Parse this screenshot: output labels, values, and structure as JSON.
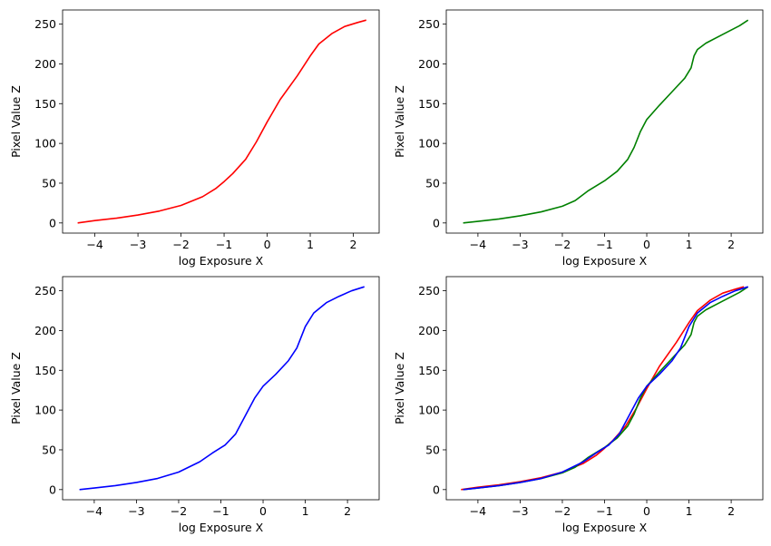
{
  "chart_data": [
    {
      "type": "line",
      "xlabel": "log Exposure X",
      "ylabel": "Pixel Value Z",
      "xticks": [
        -4,
        -3,
        -2,
        -1,
        0,
        1,
        2
      ],
      "yticks": [
        0,
        50,
        100,
        150,
        200,
        250
      ],
      "xlim": [
        -4.75,
        2.6
      ],
      "ylim": [
        -12.75,
        267.75
      ],
      "grid": false,
      "series": [
        {
          "color": "#ff0000",
          "points": [
            [
              -4.4,
              0
            ],
            [
              -4.0,
              3
            ],
            [
              -3.5,
              6
            ],
            [
              -3.0,
              10
            ],
            [
              -2.5,
              15
            ],
            [
              -2.0,
              22
            ],
            [
              -1.5,
              33
            ],
            [
              -1.2,
              43
            ],
            [
              -1.0,
              52
            ],
            [
              -0.8,
              62
            ],
            [
              -0.5,
              80
            ],
            [
              -0.25,
              102
            ],
            [
              0.0,
              127
            ],
            [
              0.3,
              155
            ],
            [
              0.7,
              185
            ],
            [
              1.0,
              210
            ],
            [
              1.2,
              225
            ],
            [
              1.5,
              238
            ],
            [
              1.8,
              247
            ],
            [
              2.1,
              252
            ],
            [
              2.3,
              255
            ]
          ]
        }
      ]
    },
    {
      "type": "line",
      "xlabel": "log Exposure X",
      "ylabel": "Pixel Value Z",
      "xticks": [
        -4,
        -3,
        -2,
        -1,
        0,
        1,
        2
      ],
      "yticks": [
        0,
        50,
        100,
        150,
        200,
        250
      ],
      "xlim": [
        -4.75,
        2.75
      ],
      "ylim": [
        -12.75,
        267.75
      ],
      "grid": false,
      "series": [
        {
          "color": "#008000",
          "points": [
            [
              -4.35,
              0
            ],
            [
              -4.0,
              2
            ],
            [
              -3.5,
              5
            ],
            [
              -3.0,
              9
            ],
            [
              -2.5,
              14
            ],
            [
              -2.0,
              21
            ],
            [
              -1.7,
              28
            ],
            [
              -1.4,
              40
            ],
            [
              -1.0,
              53
            ],
            [
              -0.7,
              65
            ],
            [
              -0.45,
              80
            ],
            [
              -0.3,
              95
            ],
            [
              -0.15,
              115
            ],
            [
              0.0,
              130
            ],
            [
              0.3,
              148
            ],
            [
              0.6,
              165
            ],
            [
              0.9,
              182
            ],
            [
              1.05,
              195
            ],
            [
              1.12,
              210
            ],
            [
              1.2,
              218
            ],
            [
              1.4,
              226
            ],
            [
              1.8,
              237
            ],
            [
              2.2,
              248
            ],
            [
              2.4,
              255
            ]
          ]
        }
      ]
    },
    {
      "type": "line",
      "xlabel": "log Exposure X",
      "ylabel": "Pixel Value Z",
      "xticks": [
        -4,
        -3,
        -2,
        -1,
        0,
        1,
        2
      ],
      "yticks": [
        0,
        50,
        100,
        150,
        200,
        250
      ],
      "xlim": [
        -4.75,
        2.75
      ],
      "ylim": [
        -12.75,
        267.75
      ],
      "grid": false,
      "series": [
        {
          "color": "#0000ff",
          "points": [
            [
              -4.35,
              0
            ],
            [
              -4.0,
              2
            ],
            [
              -3.5,
              5
            ],
            [
              -3.0,
              9
            ],
            [
              -2.5,
              14
            ],
            [
              -2.0,
              22
            ],
            [
              -1.5,
              35
            ],
            [
              -1.2,
              46
            ],
            [
              -0.9,
              56
            ],
            [
              -0.65,
              70
            ],
            [
              -0.45,
              90
            ],
            [
              -0.2,
              115
            ],
            [
              0.0,
              130
            ],
            [
              0.3,
              145
            ],
            [
              0.6,
              162
            ],
            [
              0.8,
              178
            ],
            [
              1.0,
              205
            ],
            [
              1.2,
              222
            ],
            [
              1.5,
              235
            ],
            [
              1.8,
              243
            ],
            [
              2.1,
              250
            ],
            [
              2.4,
              255
            ]
          ]
        }
      ]
    },
    {
      "type": "line",
      "xlabel": "log Exposure X",
      "ylabel": "Pixel Value Z",
      "xticks": [
        -4,
        -3,
        -2,
        -1,
        0,
        1,
        2
      ],
      "yticks": [
        0,
        50,
        100,
        150,
        200,
        250
      ],
      "xlim": [
        -4.75,
        2.75
      ],
      "ylim": [
        -12.75,
        267.75
      ],
      "grid": false,
      "series": [
        {
          "color": "#ff0000",
          "points": [
            [
              -4.4,
              0
            ],
            [
              -4.0,
              3
            ],
            [
              -3.5,
              6
            ],
            [
              -3.0,
              10
            ],
            [
              -2.5,
              15
            ],
            [
              -2.0,
              22
            ],
            [
              -1.5,
              33
            ],
            [
              -1.2,
              43
            ],
            [
              -1.0,
              52
            ],
            [
              -0.8,
              62
            ],
            [
              -0.5,
              80
            ],
            [
              -0.25,
              102
            ],
            [
              0.0,
              127
            ],
            [
              0.3,
              155
            ],
            [
              0.7,
              185
            ],
            [
              1.0,
              210
            ],
            [
              1.2,
              225
            ],
            [
              1.5,
              238
            ],
            [
              1.8,
              247
            ],
            [
              2.1,
              252
            ],
            [
              2.3,
              255
            ]
          ]
        },
        {
          "color": "#008000",
          "points": [
            [
              -4.35,
              0
            ],
            [
              -4.0,
              2
            ],
            [
              -3.5,
              5
            ],
            [
              -3.0,
              9
            ],
            [
              -2.5,
              14
            ],
            [
              -2.0,
              21
            ],
            [
              -1.7,
              28
            ],
            [
              -1.4,
              40
            ],
            [
              -1.0,
              53
            ],
            [
              -0.7,
              65
            ],
            [
              -0.45,
              80
            ],
            [
              -0.3,
              95
            ],
            [
              -0.15,
              115
            ],
            [
              0.0,
              130
            ],
            [
              0.3,
              148
            ],
            [
              0.6,
              165
            ],
            [
              0.9,
              182
            ],
            [
              1.05,
              195
            ],
            [
              1.12,
              210
            ],
            [
              1.2,
              218
            ],
            [
              1.4,
              226
            ],
            [
              1.8,
              237
            ],
            [
              2.2,
              248
            ],
            [
              2.4,
              255
            ]
          ]
        },
        {
          "color": "#0000ff",
          "points": [
            [
              -4.35,
              0
            ],
            [
              -4.0,
              2
            ],
            [
              -3.5,
              5
            ],
            [
              -3.0,
              9
            ],
            [
              -2.5,
              14
            ],
            [
              -2.0,
              22
            ],
            [
              -1.5,
              35
            ],
            [
              -1.2,
              46
            ],
            [
              -0.9,
              56
            ],
            [
              -0.65,
              70
            ],
            [
              -0.45,
              90
            ],
            [
              -0.2,
              115
            ],
            [
              0.0,
              130
            ],
            [
              0.3,
              145
            ],
            [
              0.6,
              162
            ],
            [
              0.8,
              178
            ],
            [
              1.0,
              205
            ],
            [
              1.2,
              222
            ],
            [
              1.5,
              235
            ],
            [
              1.8,
              243
            ],
            [
              2.1,
              250
            ],
            [
              2.4,
              255
            ]
          ]
        }
      ]
    }
  ]
}
